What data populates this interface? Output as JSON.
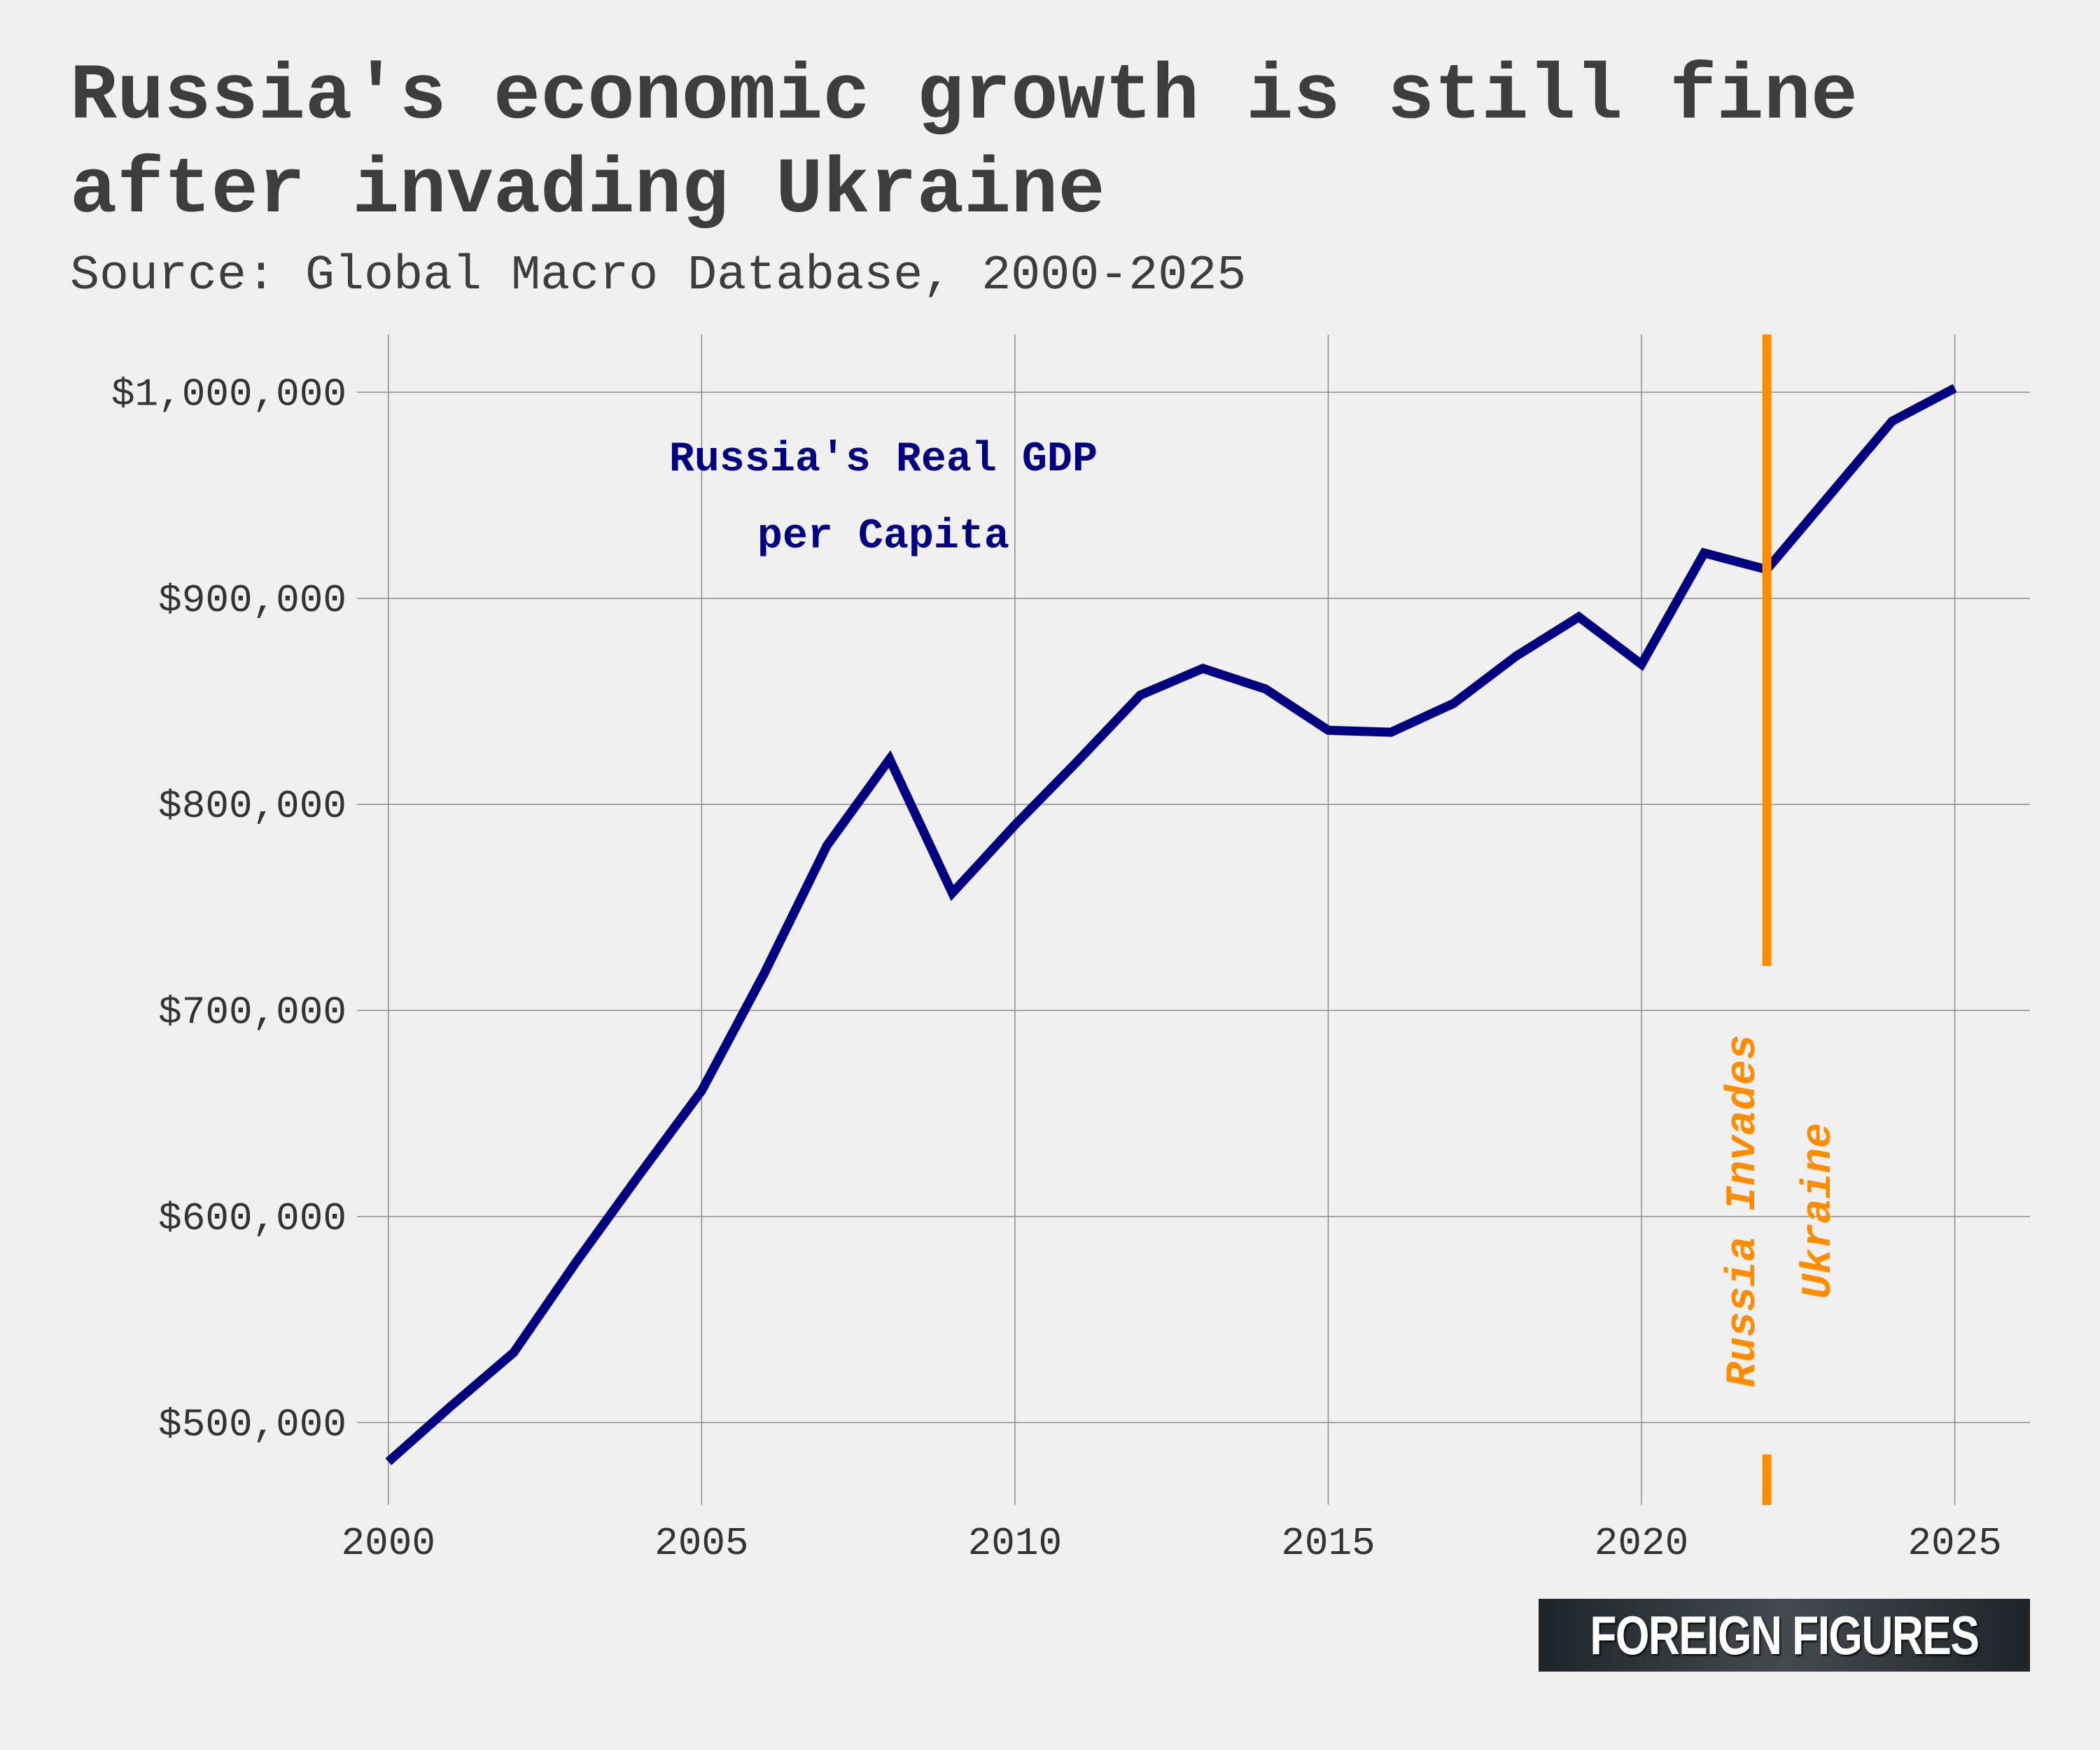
{
  "header": {
    "title": "Russia's economic growth is still fine after invading Ukraine",
    "subtitle": "Source: Global Macro Database, 2000-2025"
  },
  "logo": {
    "text": "FOREIGN FIGURES"
  },
  "colors": {
    "background": "#f0f0f0",
    "line": "#000080",
    "event": "#ff8c00",
    "grid": "#8c8c8c"
  },
  "chart_data": {
    "type": "line",
    "title": "Russia's economic growth is still fine after invading Ukraine",
    "subtitle": "Source: Global Macro Database, 2000-2025",
    "xlabel": "",
    "ylabel": "",
    "xlim": [
      1999.5,
      2026.2
    ],
    "ylim": [
      460000,
      1028000
    ],
    "grid": true,
    "x_ticks": [
      2000,
      2005,
      2010,
      2015,
      2020,
      2025
    ],
    "x_tick_labels": [
      "2000",
      "2005",
      "2010",
      "2015",
      "2020",
      "2025"
    ],
    "y_ticks": [
      500000,
      600000,
      700000,
      800000,
      900000,
      1000000
    ],
    "y_tick_labels": [
      "$500,000",
      "$600,000",
      "$700,000",
      "$800,000",
      "$900,000",
      "$1,000,000"
    ],
    "series": [
      {
        "label_lines": [
          "Russia's Real GDP",
          "per Capita"
        ],
        "x": [
          2000,
          2001,
          2002,
          2003,
          2004,
          2005,
          2006,
          2007,
          2008,
          2009,
          2010,
          2011,
          2012,
          2013,
          2014,
          2015,
          2016,
          2017,
          2018,
          2019,
          2020,
          2021,
          2022,
          2023,
          2024,
          2025
        ],
        "y": [
          481000,
          508000,
          534000,
          578000,
          620000,
          661000,
          718000,
          780000,
          822000,
          757000,
          790000,
          821000,
          853000,
          866000,
          856000,
          836000,
          835000,
          849000,
          872000,
          891000,
          868000,
          922000,
          914000,
          950000,
          986000,
          1002000
        ]
      }
    ],
    "annotations": [
      {
        "type": "vline",
        "x": 2022,
        "text_lines": [
          "Russia Invades",
          "Ukraine"
        ]
      }
    ]
  }
}
